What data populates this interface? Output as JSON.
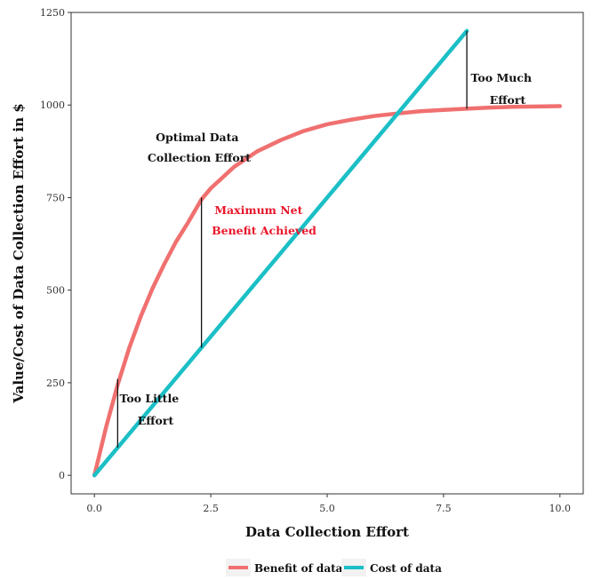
{
  "chart_data": {
    "type": "line",
    "xlabel": "Data Collection Effort",
    "ylabel": "Value/Cost of Data Collection Effort in $",
    "xlim": [
      -0.5,
      10.5
    ],
    "ylim": [
      -50,
      1250
    ],
    "x_ticks": [
      0,
      2.5,
      5,
      7.5,
      10
    ],
    "x_tick_labels": [
      "0.0",
      "2.5",
      "5.0",
      "7.5",
      "10.0"
    ],
    "y_ticks": [
      0,
      250,
      500,
      750,
      1000,
      1250
    ],
    "y_tick_labels": [
      "0",
      "250",
      "500",
      "750",
      "1000",
      "1250"
    ],
    "grid": false,
    "legend_position": "bottom",
    "series": [
      {
        "name": "Benefit of data",
        "color": "#f07070",
        "x": [
          0,
          0.25,
          0.5,
          0.75,
          1,
          1.25,
          1.5,
          1.75,
          2,
          2.3,
          2.5,
          3,
          3.5,
          4,
          4.5,
          5,
          5.5,
          6,
          6.5,
          7,
          7.5,
          8,
          8.5,
          9,
          9.5,
          10
        ],
        "y": [
          0,
          130,
          245,
          345,
          430,
          505,
          570,
          630,
          680,
          745,
          775,
          833,
          875,
          905,
          930,
          948,
          960,
          970,
          977,
          983,
          987,
          990,
          993,
          995,
          996,
          997
        ]
      },
      {
        "name": "Cost of data",
        "color": "#1bbfc6",
        "x": [
          0,
          8
        ],
        "y": [
          0,
          1200
        ]
      }
    ],
    "annotations": [
      {
        "id": "too-little",
        "lines": [
          "Too Little",
          "Effort"
        ],
        "x": 0.5,
        "y_low": 75,
        "y_high": 260
      },
      {
        "id": "optimal",
        "lines": [
          "Optimal Data",
          "Collection Effort"
        ]
      },
      {
        "id": "max-net",
        "lines": [
          "Maximum Net",
          "Benefit Achieved"
        ],
        "x": 2.3,
        "y_low": 345,
        "y_high": 750
      },
      {
        "id": "too-much",
        "lines": [
          "Too Much",
          "Effort"
        ],
        "x": 8,
        "y_low": 990,
        "y_high": 1200
      }
    ],
    "legend": [
      {
        "label": "Benefit of data",
        "color": "#f07070"
      },
      {
        "label": "Cost of data",
        "color": "#1bbfc6"
      }
    ]
  }
}
